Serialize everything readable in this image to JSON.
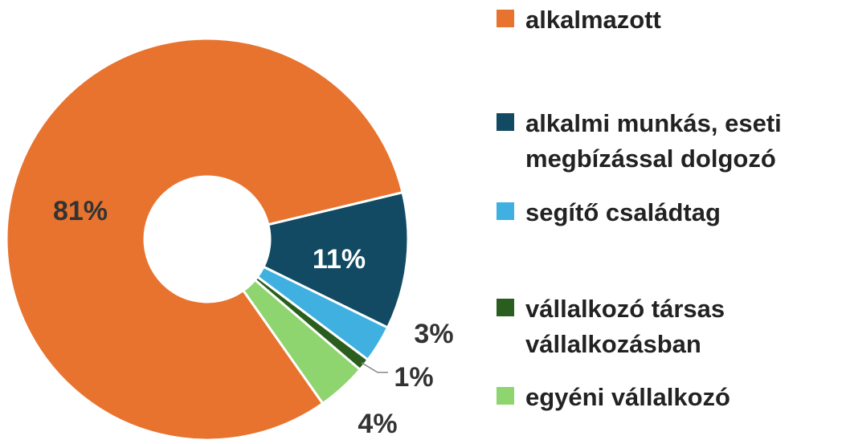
{
  "chart_data": {
    "type": "donut",
    "categories": [
      "alkalmazott",
      "alkalmi munkás, eseti megbízással dolgozó",
      "segítő családtag",
      "vállalkozó társas vállalkozásban",
      "egyéni vállalkozó"
    ],
    "values": [
      81,
      11,
      3,
      1,
      4
    ],
    "value_labels": [
      "81%",
      "11%",
      "3%",
      "1%",
      "4%"
    ],
    "colors": [
      "#e8732f",
      "#124a63",
      "#3fb0e0",
      "#2a5e1e",
      "#8ed46f"
    ],
    "legend": "right"
  }
}
